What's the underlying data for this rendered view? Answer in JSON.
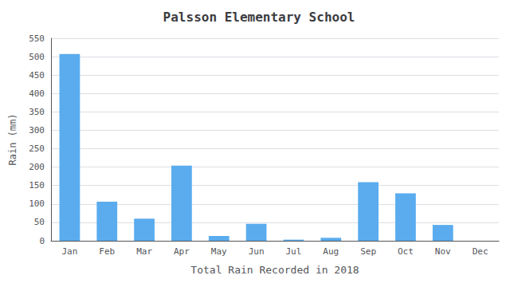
{
  "chart_data": {
    "type": "bar",
    "title": "Palsson Elementary School",
    "xlabel": "Total Rain Recorded in 2018",
    "ylabel": "Rain (mm)",
    "categories": [
      "Jan",
      "Feb",
      "Mar",
      "Apr",
      "May",
      "Jun",
      "Jul",
      "Aug",
      "Sep",
      "Oct",
      "Nov",
      "Dec"
    ],
    "values": [
      507,
      106,
      60,
      204,
      13,
      46,
      3,
      8,
      159,
      129,
      43,
      0
    ],
    "color": "#5aacee",
    "ylim": [
      0,
      550
    ],
    "yticks": [
      0,
      50,
      100,
      150,
      200,
      250,
      300,
      350,
      400,
      450,
      500,
      550
    ],
    "grid": true
  }
}
